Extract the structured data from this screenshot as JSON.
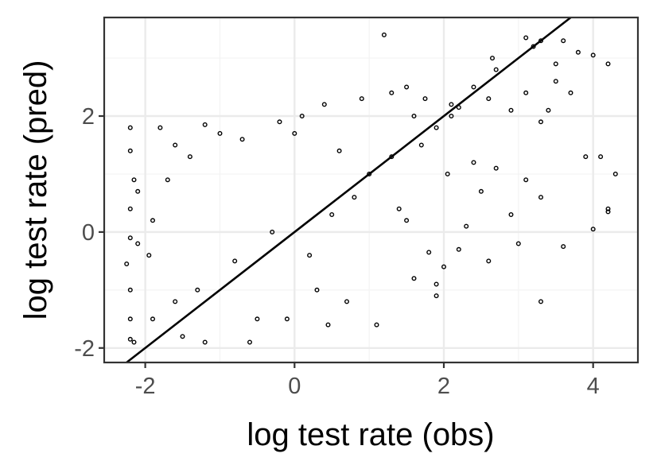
{
  "chart_data": {
    "type": "scatter",
    "title": "",
    "xlabel": "log test rate (obs)",
    "ylabel": "log test rate (pred)",
    "xlim": [
      -2.55,
      4.6
    ],
    "ylim": [
      -2.25,
      3.7
    ],
    "x_ticks": [
      -2,
      0,
      2,
      4
    ],
    "y_ticks": [
      -2,
      0,
      2
    ],
    "x_tick_labels": [
      "-2",
      "0",
      "2",
      "4"
    ],
    "y_tick_labels": [
      "-2",
      "0",
      "2"
    ],
    "grid": true,
    "legend": "none",
    "reference_line": {
      "slope": 1,
      "intercept": 0,
      "label": ""
    },
    "series": [
      {
        "marker": "open-circle",
        "color": "#000000",
        "points": [
          [
            -2.2,
            1.8
          ],
          [
            -2.2,
            1.4
          ],
          [
            -1.8,
            1.8
          ],
          [
            -2.15,
            0.9
          ],
          [
            -2.1,
            0.7
          ],
          [
            -2.2,
            0.4
          ],
          [
            -2.25,
            -0.55
          ],
          [
            -2.2,
            -0.1
          ],
          [
            -2.1,
            -0.2
          ],
          [
            -2.2,
            -1.0
          ],
          [
            -2.2,
            -1.5
          ],
          [
            -2.15,
            -1.9
          ],
          [
            -2.2,
            -1.85
          ],
          [
            -1.6,
            1.5
          ],
          [
            -1.4,
            1.3
          ],
          [
            -1.2,
            1.85
          ],
          [
            -1.7,
            0.9
          ],
          [
            -1.9,
            0.2
          ],
          [
            -1.95,
            -0.4
          ],
          [
            -1.0,
            1.7
          ],
          [
            -0.7,
            1.6
          ],
          [
            -0.2,
            1.9
          ],
          [
            0.0,
            1.7
          ],
          [
            0.1,
            2.0
          ],
          [
            0.4,
            2.2
          ],
          [
            0.9,
            2.3
          ],
          [
            1.2,
            3.4
          ],
          [
            1.3,
            2.4
          ],
          [
            1.5,
            2.5
          ],
          [
            1.6,
            2.0
          ],
          [
            1.75,
            2.3
          ],
          [
            2.1,
            2.2
          ],
          [
            2.2,
            2.15
          ],
          [
            2.4,
            2.5
          ],
          [
            2.65,
            3.0
          ],
          [
            2.7,
            2.8
          ],
          [
            3.1,
            3.35
          ],
          [
            3.2,
            3.2
          ],
          [
            3.3,
            3.3
          ],
          [
            3.6,
            3.3
          ],
          [
            3.8,
            3.1
          ],
          [
            3.5,
            2.9
          ],
          [
            4.0,
            3.05
          ],
          [
            4.2,
            2.9
          ],
          [
            3.5,
            2.6
          ],
          [
            3.7,
            2.4
          ],
          [
            3.4,
            2.1
          ],
          [
            3.3,
            1.9
          ],
          [
            3.1,
            2.4
          ],
          [
            2.9,
            2.1
          ],
          [
            3.9,
            1.3
          ],
          [
            4.1,
            1.3
          ],
          [
            4.3,
            1.0
          ],
          [
            4.2,
            0.4
          ],
          [
            4.2,
            0.35
          ],
          [
            4.0,
            0.05
          ],
          [
            3.6,
            -0.25
          ],
          [
            3.3,
            -1.2
          ],
          [
            3.0,
            -0.2
          ],
          [
            3.3,
            0.6
          ],
          [
            3.1,
            0.9
          ],
          [
            2.9,
            0.3
          ],
          [
            2.6,
            -0.5
          ],
          [
            2.5,
            0.7
          ],
          [
            2.3,
            0.1
          ],
          [
            2.2,
            -0.3
          ],
          [
            2.0,
            -0.6
          ],
          [
            1.8,
            -0.35
          ],
          [
            1.9,
            -0.9
          ],
          [
            1.6,
            -0.8
          ],
          [
            1.9,
            -1.1
          ],
          [
            1.5,
            0.2
          ],
          [
            2.05,
            1.0
          ],
          [
            2.4,
            1.2
          ],
          [
            2.7,
            1.1
          ],
          [
            1.1,
            -1.6
          ],
          [
            0.45,
            -1.6
          ],
          [
            0.7,
            -1.2
          ],
          [
            0.3,
            -1.0
          ],
          [
            -0.1,
            -1.5
          ],
          [
            -0.6,
            -1.9
          ],
          [
            -1.2,
            -1.9
          ],
          [
            -1.5,
            -1.8
          ],
          [
            -0.5,
            -1.5
          ],
          [
            0.2,
            -0.4
          ],
          [
            0.5,
            0.3
          ],
          [
            -0.3,
            0.0
          ],
          [
            0.8,
            0.6
          ],
          [
            1.0,
            1.0
          ],
          [
            -0.8,
            -0.5
          ],
          [
            1.3,
            1.3
          ],
          [
            1.7,
            1.5
          ],
          [
            -1.3,
            -1.0
          ],
          [
            1.9,
            1.8
          ],
          [
            -1.6,
            -1.2
          ],
          [
            2.1,
            2.0
          ],
          [
            -1.9,
            -1.5
          ],
          [
            2.6,
            2.3
          ],
          [
            0.6,
            1.4
          ],
          [
            1.4,
            0.4
          ]
        ]
      }
    ]
  }
}
